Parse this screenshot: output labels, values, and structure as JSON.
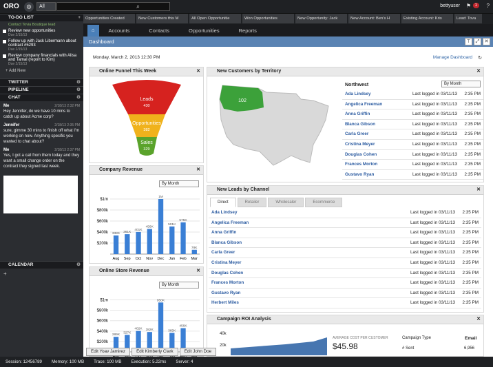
{
  "app": {
    "logo": "ORO",
    "scope": "All",
    "user": "bettyuser",
    "notifications": "1"
  },
  "sidebar": {
    "todo_title": "TO-DO LIST",
    "todo_first": "Contact Tovia Boutique lead",
    "todos": [
      {
        "text": "Review new opportunities",
        "due": "Due 2/15/13"
      },
      {
        "text": "Follow up with Jack Libermann about contract #5293",
        "due": "Due 2/15/13"
      },
      {
        "text": "Review company financials with Alisa and Tamal (report to Kim)",
        "due": "Due 2/15/13"
      }
    ],
    "add_new": "+ Add New",
    "twitter": "TWITTER",
    "pipeline": "PIPELINE",
    "chat": "CHAT",
    "calendar": "CALENDAR",
    "chat_msgs": [
      {
        "who": "Me",
        "time": "2/18/13 2:32 PM",
        "text": "Hey Jennifer, do we have 10 mins to catch up about Acme corp?"
      },
      {
        "who": "Jennifer",
        "time": "2/18/13 2:35 PM",
        "text": "sure, gimme 30 mins to finish off what I'm working on now. Anything specific you wanted to chat about?"
      },
      {
        "who": "Me",
        "time": "2/18/13 2:37 PM",
        "text": "Yes, I got a call from them today and they want a small change order on the contract they signed last week."
      }
    ]
  },
  "tabs": [
    "Opportunities Created",
    "New Customers this M",
    "All Open Opportunitie",
    "Won Opportunities",
    "New Opportunity: Jack",
    "New Account: Ben's H",
    "Existing Account: Kris",
    "Lead: Tova"
  ],
  "nav": {
    "home": "⌂",
    "items": [
      "Accounts",
      "Contacts",
      "Opportunities",
      "Reports"
    ]
  },
  "dashboard": {
    "title": "Dashboard",
    "date": "Monday, March 2, 2013 12:30 PM",
    "manage": "Manage Dashboard"
  },
  "funnel": {
    "title": "Online Funnel This Week",
    "stages": [
      {
        "name": "Leads",
        "value": "430"
      },
      {
        "name": "Opportunities",
        "value": "382"
      },
      {
        "name": "Sales",
        "value": "329"
      }
    ]
  },
  "revenue": {
    "title": "Company Revenue",
    "select": "By Month"
  },
  "store": {
    "title": "Online Store Revenue",
    "select": "By Month"
  },
  "territory": {
    "title": "New Customers by Territory",
    "region": "Northwest",
    "select": "By Month",
    "map_value": "102",
    "customers": [
      "Ada Lindsey",
      "Angelica Freeman",
      "Anna Griffin",
      "Blanca Gibson",
      "Carla Greer",
      "Cristina Meyer",
      "Douglas Cohen",
      "Frances Morton",
      "Gustavo Ryan"
    ],
    "status": "Last logged in 03/11/13",
    "time": "2:35 PM"
  },
  "channel": {
    "title": "New Leads by Channel",
    "tabs": [
      "Direct",
      "Retailer",
      "Wholesaler",
      "Ecommerce"
    ],
    "leads": [
      "Ada Lindsey",
      "Angelica Freeman",
      "Anna Griffin",
      "Blanca Gibson",
      "Carla Greer",
      "Cristina Meyer",
      "Douglas Cohen",
      "Frances Morton",
      "Gustavo Ryan",
      "Herbert Miles"
    ],
    "status": "Last logged in 03/11/13",
    "time": "2:35 PM"
  },
  "roi": {
    "title": "Campaign ROI Analysis",
    "avg_label": "AVERAGE COST PER CUSTOMER",
    "avg": "$45.98",
    "col1": "Campaign Type",
    "col2": "Email",
    "row1": "# Sent",
    "row1v": "6,956",
    "ylabel": "40k",
    "ylabel2": "20k"
  },
  "taskbar": [
    "Edit Yoav Jamirez",
    "Edit Kimberly Clark",
    "Edit John Doe"
  ],
  "status": {
    "session": "Session: 12456789",
    "memory": "Memory: 100 MB",
    "trace": "Trace: 100 MB",
    "execution": "Execution: 5.22ms",
    "server": "Server: 4"
  },
  "chart_data": [
    {
      "type": "bar",
      "title": "Company Revenue",
      "categories": [
        "Aug",
        "Sep",
        "Oct",
        "Nov",
        "Dec",
        "Jan",
        "Feb",
        "Mar"
      ],
      "values": [
        338,
        361,
        401,
        456,
        1000,
        501,
        575,
        78
      ],
      "data_labels": [
        "338K",
        "361K",
        "401K",
        "456K",
        "1M",
        "501K",
        "575K",
        "78K"
      ],
      "yticks": [
        "$200k",
        "$400k",
        "$600k",
        "$800k",
        "$1m"
      ],
      "ylim": [
        0,
        1100
      ]
    },
    {
      "type": "bar",
      "title": "Online Store Revenue",
      "categories": [
        "Aug",
        "Sep",
        "Oct",
        "Nov",
        "Dec",
        "Jan",
        "Feb",
        "Mar"
      ],
      "values": [
        289,
        327,
        402,
        382,
        950,
        365,
        456,
        0
      ],
      "data_labels": [
        "289K",
        "327K",
        "402K",
        "382K",
        "950K",
        "365K",
        "456K",
        ""
      ],
      "yticks": [
        "$200k",
        "$400k",
        "$600k",
        "$800k",
        "$1m"
      ],
      "ylim": [
        0,
        1100
      ]
    }
  ]
}
